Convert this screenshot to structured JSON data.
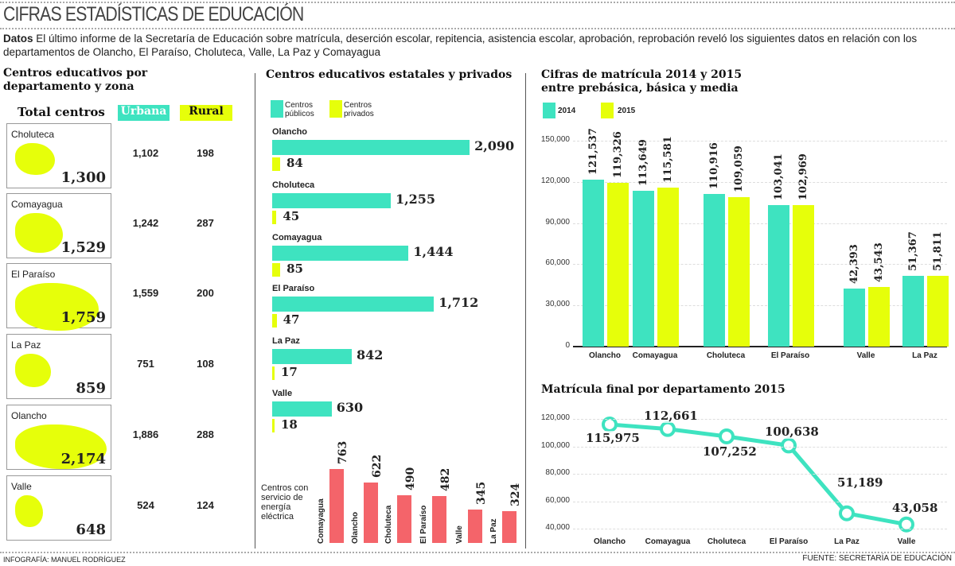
{
  "title": "CIFRAS ESTADÍSTICAS DE EDUCACIÓN",
  "intro": {
    "bold": "Datos",
    "text": " El último informe de la Secretaría de Educación sobre matrícula, deserción escolar, repitencia, asistencia escolar, aprobación, reprobación reveló los siguientes datos en relación con los departamentos de Olancho, El Paraíso, Choluteca, Valle, La Paz y Comayagua"
  },
  "left": {
    "title": "Centros educativos por departamento y zona",
    "col_total": "Total centros",
    "col_urbana": "Urbana",
    "col_rural": "Rural",
    "rows": [
      {
        "name": "Choluteca",
        "total": "1,300",
        "urbana": "1,102",
        "rural": "198"
      },
      {
        "name": "Comayagua",
        "total": "1,529",
        "urbana": "1,242",
        "rural": "287"
      },
      {
        "name": "El Paraíso",
        "total": "1,759",
        "urbana": "1,559",
        "rural": "200"
      },
      {
        "name": "La Paz",
        "total": "859",
        "urbana": "751",
        "rural": "108"
      },
      {
        "name": "Olancho",
        "total": "2,174",
        "urbana": "1,886",
        "rural": "288"
      },
      {
        "name": "Valle",
        "total": "648",
        "urbana": "524",
        "rural": "124"
      }
    ]
  },
  "colors": {
    "teal": "#3ee3c0",
    "yellow": "#e6ff0a",
    "red": "#f4646a"
  },
  "chart_data": [
    {
      "type": "bar",
      "title": "Centros educativos estatales y privados",
      "legend": [
        "Centros públicos",
        "Centros privados"
      ],
      "categories": [
        "Olancho",
        "Choluteca",
        "Comayagua",
        "El Paraíso",
        "La Paz",
        "Valle"
      ],
      "series": [
        {
          "name": "Centros públicos",
          "values": [
            2090,
            1255,
            1444,
            1712,
            842,
            630
          ],
          "labels": [
            "2,090",
            "1,255",
            "1,444",
            "1,712",
            "842",
            "630"
          ]
        },
        {
          "name": "Centros privados",
          "values": [
            84,
            45,
            85,
            47,
            17,
            18
          ],
          "labels": [
            "84",
            "45",
            "85",
            "47",
            "17",
            "18"
          ]
        }
      ]
    },
    {
      "type": "bar",
      "title": "Centros con servicio de energía eléctrica",
      "categories": [
        "Comayagua",
        "Olancho",
        "Choluteca",
        "El Paraíso",
        "Valle",
        "La Paz"
      ],
      "values": [
        763,
        622,
        490,
        482,
        345,
        324
      ]
    },
    {
      "type": "bar",
      "title": "Cifras de matrícula 2014 y 2015 entre prebásica, básica y media",
      "legend": [
        "2014",
        "2015"
      ],
      "categories": [
        "Olancho",
        "Comayagua",
        "Choluteca",
        "El Paraíso",
        "Valle",
        "La Paz"
      ],
      "series": [
        {
          "name": "2014",
          "values": [
            121537,
            113649,
            110916,
            103041,
            42393,
            51367
          ],
          "labels": [
            "121,537",
            "113,649",
            "110,916",
            "103,041",
            "42,393",
            "51,367"
          ]
        },
        {
          "name": "2015",
          "values": [
            119326,
            115581,
            109059,
            102969,
            43543,
            51811
          ],
          "labels": [
            "119,326",
            "115,581",
            "109,059",
            "102,969",
            "43,543",
            "51,811"
          ]
        }
      ],
      "ylim": [
        0,
        150000
      ],
      "yticks": [
        "0",
        "30,000",
        "60,000",
        "90,000",
        "120,000",
        "150,000"
      ],
      "grid": true
    },
    {
      "type": "line",
      "title": "Matrícula final por departamento 2015",
      "categories": [
        "Olancho",
        "Comayagua",
        "Choluteca",
        "El Paraíso",
        "La Paz",
        "Valle"
      ],
      "values": [
        115975,
        112661,
        107252,
        100638,
        51189,
        43058
      ],
      "labels": [
        "115,975",
        "112,661",
        "107,252",
        "100,638",
        "51,189",
        "43,058"
      ],
      "ylim": [
        40000,
        120000
      ],
      "yticks": [
        "40,000",
        "60,000",
        "80,000",
        "100,000",
        "120,000"
      ],
      "grid": true
    }
  ],
  "footer": {
    "credit": "INFOGRAFÍA: MANUEL RODRÍGUEZ",
    "source": "FUENTE: SECRETARÍA DE EDUCACIÓN"
  }
}
